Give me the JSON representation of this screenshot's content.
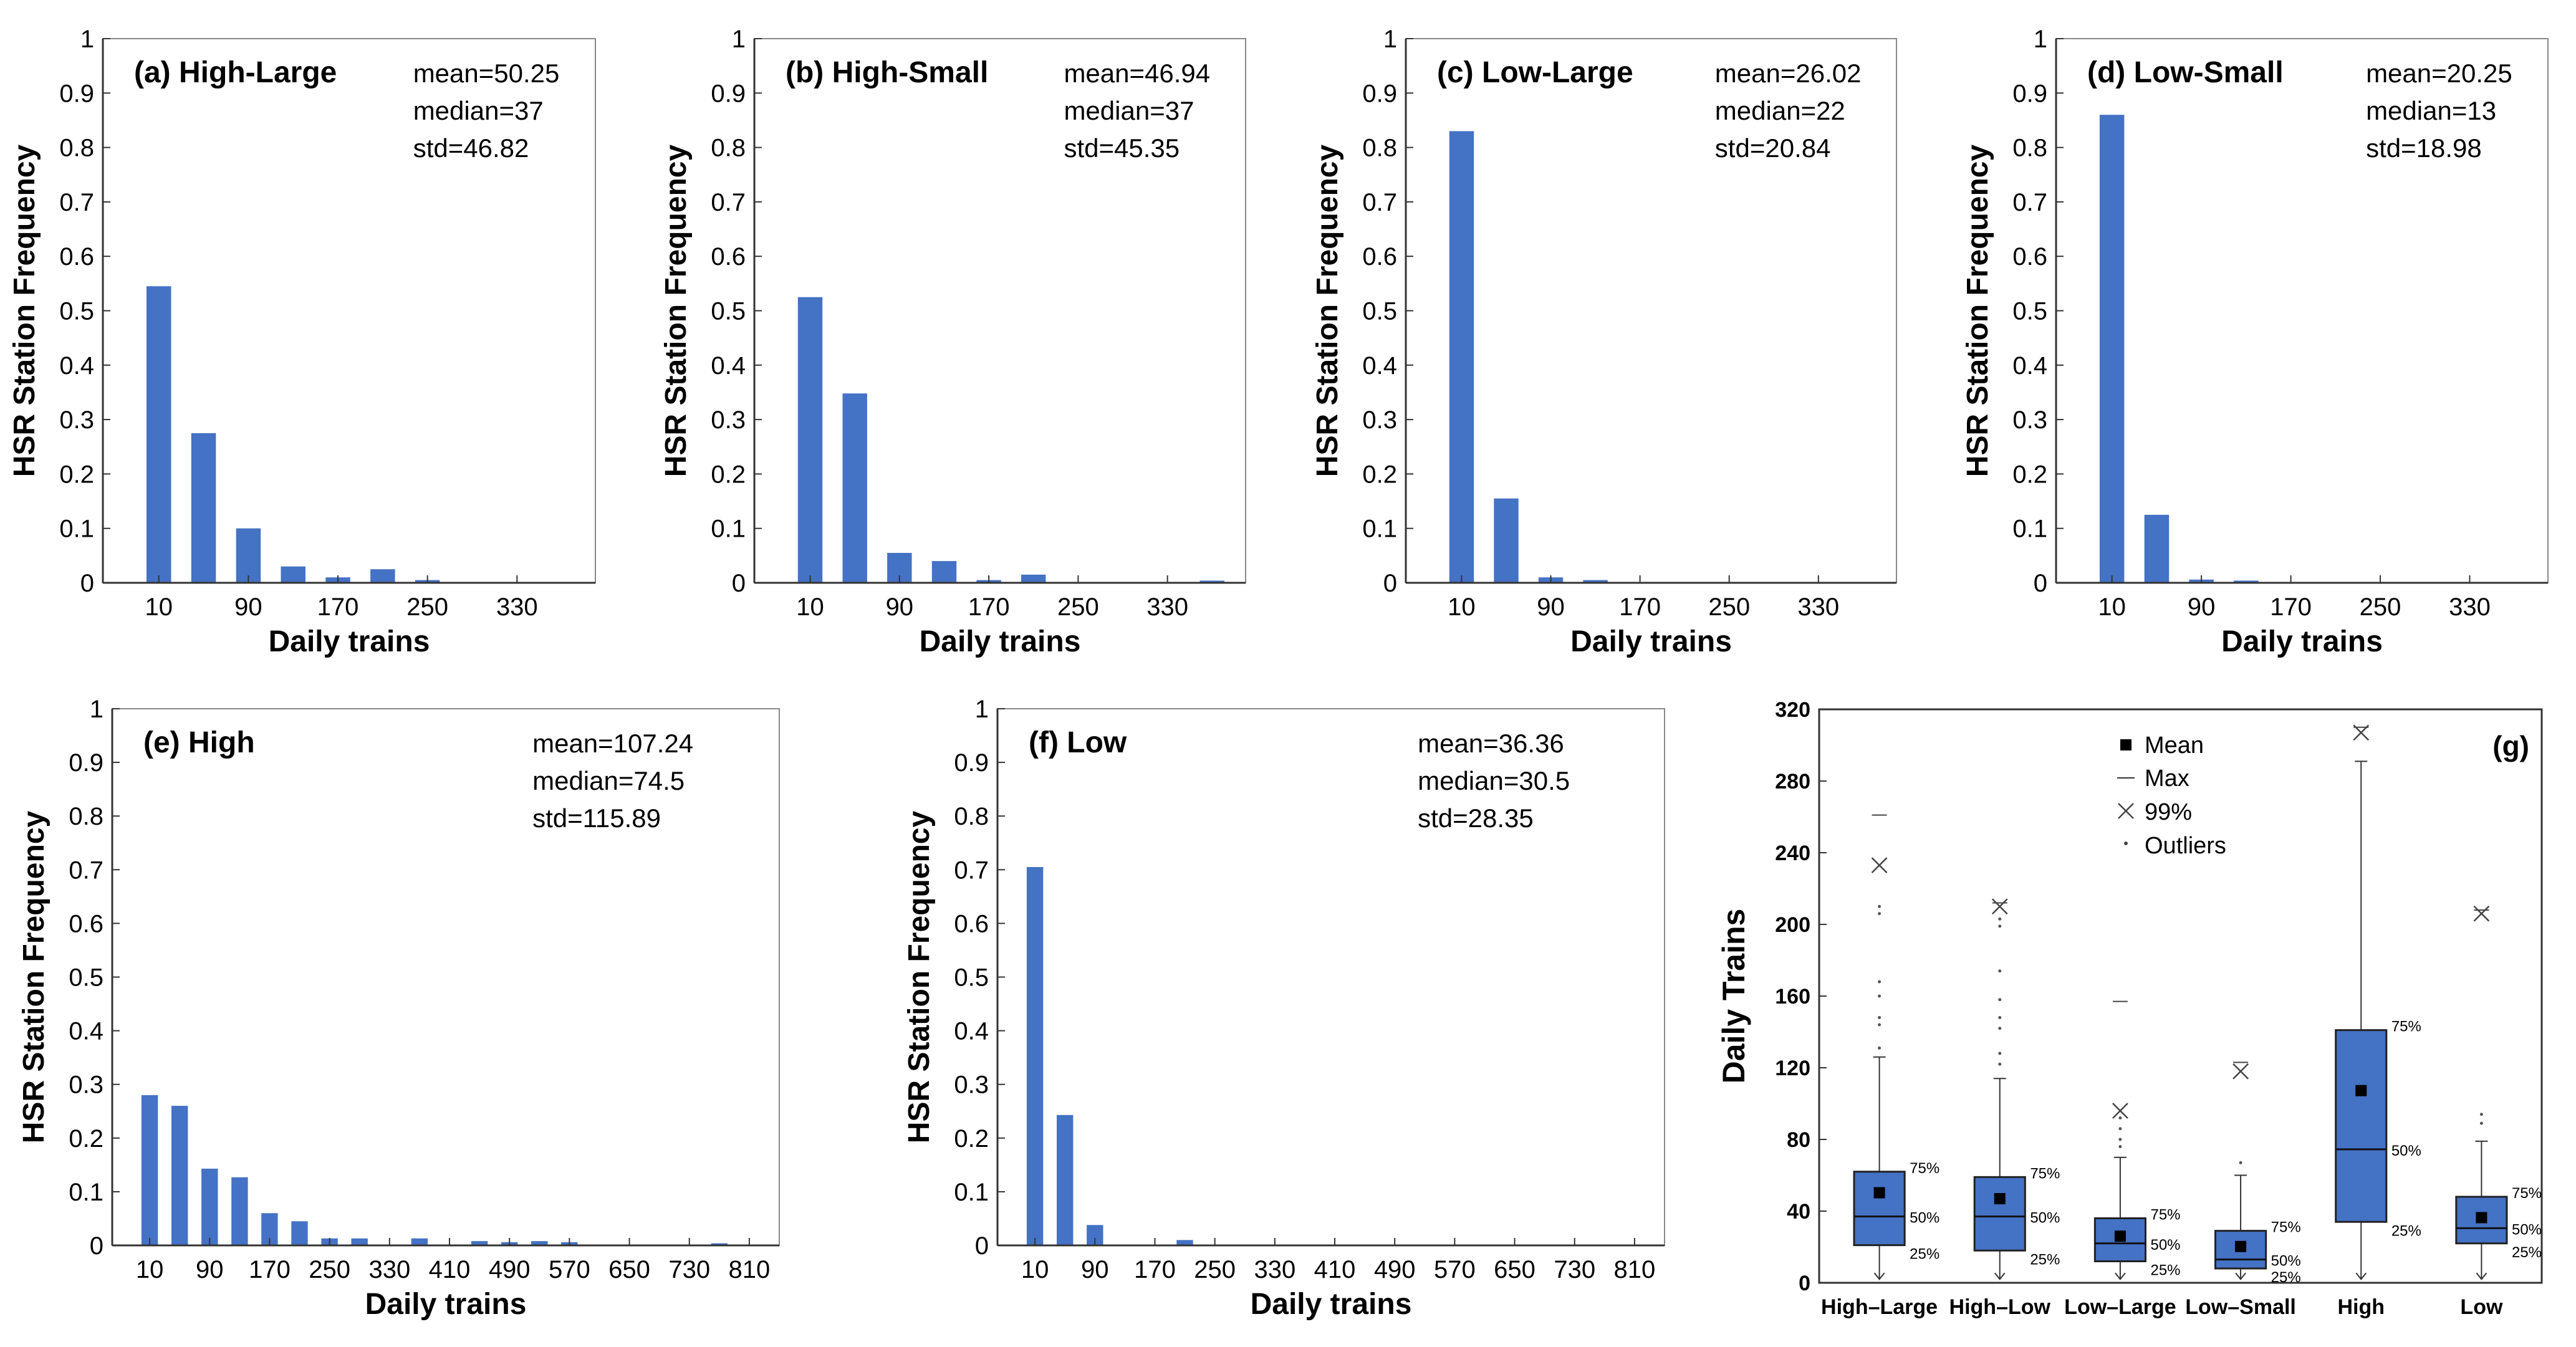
{
  "chart_data": [
    {
      "id": "a",
      "type": "bar",
      "title": "(a) High-Large",
      "xlabel": "Daily trains",
      "ylabel": "HSR Station Frequency",
      "xlim": [
        -40,
        400
      ],
      "ylim": [
        0,
        1
      ],
      "xticks": [
        10,
        90,
        170,
        250,
        330
      ],
      "yticks": [
        0,
        0.1,
        0.2,
        0.3,
        0.4,
        0.5,
        0.6,
        0.7,
        0.8,
        0.9,
        1
      ],
      "yticklabels": [
        "0",
        "0.1",
        "0.2",
        "0.3",
        "0.4",
        "0.5",
        "0.6",
        "0.7",
        "0.8",
        "0.9",
        "1"
      ],
      "bin_width": 40,
      "x": [
        10,
        50,
        90,
        130,
        170,
        210,
        250
      ],
      "values": [
        0.545,
        0.275,
        0.1,
        0.03,
        0.01,
        0.025,
        0.005
      ],
      "stats": [
        "mean=50.25",
        "median=37",
        "std=46.82"
      ]
    },
    {
      "id": "b",
      "type": "bar",
      "title": "(b) High-Small",
      "xlabel": "Daily trains",
      "ylabel": "HSR Station Frequency",
      "xlim": [
        -40,
        400
      ],
      "ylim": [
        0,
        1
      ],
      "xticks": [
        10,
        90,
        170,
        250,
        330
      ],
      "yticks": [
        0,
        0.1,
        0.2,
        0.3,
        0.4,
        0.5,
        0.6,
        0.7,
        0.8,
        0.9,
        1
      ],
      "yticklabels": [
        "0",
        "0.1",
        "0.2",
        "0.3",
        "0.4",
        "0.5",
        "0.6",
        "0.7",
        "0.8",
        "0.9",
        "1"
      ],
      "bin_width": 40,
      "x": [
        10,
        50,
        90,
        130,
        170,
        210,
        370
      ],
      "values": [
        0.525,
        0.348,
        0.055,
        0.04,
        0.005,
        0.015,
        0.004
      ],
      "stats": [
        "mean=46.94",
        "median=37",
        "std=45.35"
      ]
    },
    {
      "id": "c",
      "type": "bar",
      "title": "(c) Low-Large",
      "xlabel": "Daily trains",
      "ylabel": "HSR Station Frequency",
      "xlim": [
        -40,
        400
      ],
      "ylim": [
        0,
        1
      ],
      "xticks": [
        10,
        90,
        170,
        250,
        330
      ],
      "yticks": [
        0,
        0.1,
        0.2,
        0.3,
        0.4,
        0.5,
        0.6,
        0.7,
        0.8,
        0.9,
        1
      ],
      "yticklabels": [
        "0",
        "0.1",
        "0.2",
        "0.3",
        "0.4",
        "0.5",
        "0.6",
        "0.7",
        "0.8",
        "0.9",
        "1"
      ],
      "bin_width": 40,
      "x": [
        10,
        50,
        90,
        130
      ],
      "values": [
        0.83,
        0.155,
        0.01,
        0.005
      ],
      "stats": [
        "mean=26.02",
        "median=22",
        "std=20.84"
      ]
    },
    {
      "id": "d",
      "type": "bar",
      "title": "(d) Low-Small",
      "xlabel": "Daily trains",
      "ylabel": "HSR Station Frequency",
      "xlim": [
        -40,
        400
      ],
      "ylim": [
        0,
        1
      ],
      "xticks": [
        10,
        90,
        170,
        250,
        330
      ],
      "yticks": [
        0,
        0.1,
        0.2,
        0.3,
        0.4,
        0.5,
        0.6,
        0.7,
        0.8,
        0.9,
        1
      ],
      "yticklabels": [
        "0",
        "0.1",
        "0.2",
        "0.3",
        "0.4",
        "0.5",
        "0.6",
        "0.7",
        "0.8",
        "0.9",
        "1"
      ],
      "bin_width": 40,
      "x": [
        10,
        50,
        90,
        130
      ],
      "values": [
        0.86,
        0.125,
        0.006,
        0.004
      ],
      "stats": [
        "mean=20.25",
        "median=13",
        "std=18.98"
      ]
    },
    {
      "id": "e",
      "type": "bar",
      "title": "(e) High",
      "xlabel": "Daily trains",
      "ylabel": "HSR Station Frequency",
      "xlim": [
        -40,
        850
      ],
      "ylim": [
        0,
        1
      ],
      "xticks": [
        10,
        90,
        170,
        250,
        330,
        410,
        490,
        570,
        650,
        730,
        810
      ],
      "yticks": [
        0,
        0.1,
        0.2,
        0.3,
        0.4,
        0.5,
        0.6,
        0.7,
        0.8,
        0.9,
        1
      ],
      "yticklabels": [
        "0",
        "0.1",
        "0.2",
        "0.3",
        "0.4",
        "0.5",
        "0.6",
        "0.7",
        "0.8",
        "0.9",
        "1"
      ],
      "bin_width": 40,
      "x": [
        10,
        50,
        90,
        130,
        170,
        210,
        250,
        290,
        370,
        450,
        490,
        530,
        570,
        770
      ],
      "values": [
        0.28,
        0.26,
        0.143,
        0.127,
        0.06,
        0.045,
        0.013,
        0.013,
        0.013,
        0.008,
        0.006,
        0.008,
        0.006,
        0.004
      ],
      "stats": [
        "mean=107.24",
        "median=74.5",
        "std=115.89"
      ]
    },
    {
      "id": "f",
      "type": "bar",
      "title": "(f) Low",
      "xlabel": "Daily trains",
      "ylabel": "HSR Station Frequency",
      "xlim": [
        -40,
        850
      ],
      "ylim": [
        0,
        1
      ],
      "xticks": [
        10,
        90,
        170,
        250,
        330,
        410,
        490,
        570,
        650,
        730,
        810
      ],
      "yticks": [
        0,
        0.1,
        0.2,
        0.3,
        0.4,
        0.5,
        0.6,
        0.7,
        0.8,
        0.9,
        1
      ],
      "yticklabels": [
        "0",
        "0.1",
        "0.2",
        "0.3",
        "0.4",
        "0.5",
        "0.6",
        "0.7",
        "0.8",
        "0.9",
        "1"
      ],
      "bin_width": 40,
      "x": [
        10,
        50,
        90,
        210
      ],
      "values": [
        0.705,
        0.243,
        0.038,
        0.01
      ],
      "stats": [
        "mean=36.36",
        "median=30.5",
        "std=28.35"
      ]
    },
    {
      "id": "g",
      "type": "box",
      "title": "(g)",
      "xlabel": "",
      "ylabel": "Daily Trains",
      "ylim": [
        0,
        320
      ],
      "yticks": [
        0,
        40,
        80,
        120,
        160,
        200,
        240,
        280,
        320
      ],
      "categories": [
        "High–Large",
        "High–Low",
        "Low–Large",
        "Low–Small",
        "High",
        "Low"
      ],
      "boxes": [
        {
          "q1": 21,
          "median": 37,
          "q3": 62,
          "mean": 50.25,
          "whisker_low": 2,
          "whisker_high": 126,
          "p99": 233,
          "max": 261,
          "outliers": [
            206,
            210,
            168,
            160,
            148,
            144,
            131
          ]
        },
        {
          "q1": 18,
          "median": 37,
          "q3": 59,
          "mean": 46.94,
          "whisker_low": 2,
          "whisker_high": 114,
          "p99": 210,
          "max": 212,
          "outliers": [
            203,
            199,
            174,
            158,
            148,
            142,
            128,
            122
          ]
        },
        {
          "q1": 12,
          "median": 22,
          "q3": 36,
          "mean": 26.02,
          "whisker_low": 2,
          "whisker_high": 70,
          "p99": 96,
          "max": 157,
          "outliers": [
            92,
            86,
            80,
            76
          ]
        },
        {
          "q1": 8,
          "median": 13,
          "q3": 29,
          "mean": 20.25,
          "whisker_low": 2,
          "whisker_high": 60,
          "p99": 118,
          "max": 123,
          "outliers": [
            67
          ]
        },
        {
          "q1": 34,
          "median": 74.5,
          "q3": 141,
          "mean": 107.24,
          "whisker_low": 2,
          "whisker_high": 291,
          "p99": 307,
          "max": 310,
          "outliers": []
        },
        {
          "q1": 22,
          "median": 30.5,
          "q3": 48,
          "mean": 36.36,
          "whisker_low": 2,
          "whisker_high": 79,
          "p99": 206,
          "max": 208,
          "outliers": [
            94,
            89
          ]
        }
      ],
      "percentile_labels": [
        "75%",
        "50%",
        "25%"
      ],
      "legend": [
        "Mean",
        "Max",
        "99%",
        "Outliers"
      ]
    }
  ],
  "colors": {
    "bar": "#4472C4",
    "box_fill": "#4472C4",
    "axis": "#000000",
    "text": "#000000"
  }
}
